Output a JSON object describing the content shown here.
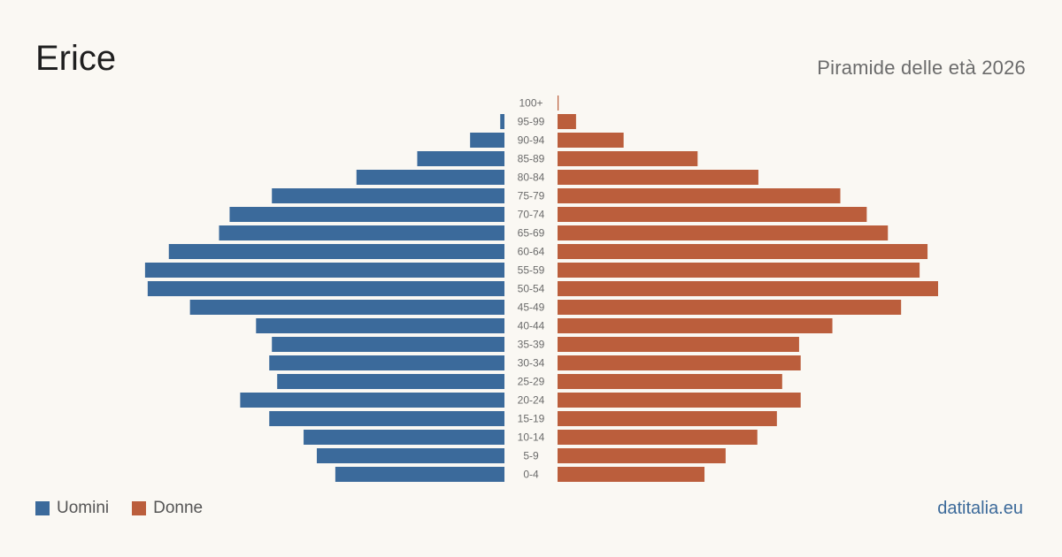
{
  "header": {
    "title": "Erice",
    "subtitle": "Piramide delle età 2026"
  },
  "legend": {
    "men_label": "Uomini",
    "women_label": "Donne"
  },
  "source": {
    "label": "datitalia.eu"
  },
  "colors": {
    "men": "#3b6a9b",
    "women": "#bb5e3c"
  },
  "chart_data": {
    "type": "bar",
    "orientation": "horizontal-pyramid",
    "categories": [
      "100+",
      "95-99",
      "90-94",
      "85-89",
      "80-84",
      "75-79",
      "70-74",
      "65-69",
      "60-64",
      "55-59",
      "50-54",
      "45-49",
      "40-44",
      "35-39",
      "30-34",
      "25-29",
      "20-24",
      "15-19",
      "10-14",
      "5-9",
      "0-4"
    ],
    "series": [
      {
        "name": "Uomini",
        "values": [
          0,
          8,
          65,
          165,
          280,
          440,
          520,
          540,
          635,
          680,
          675,
          595,
          470,
          440,
          445,
          430,
          500,
          445,
          380,
          355,
          320
        ]
      },
      {
        "name": "Donne",
        "values": [
          2,
          35,
          125,
          265,
          380,
          535,
          585,
          625,
          700,
          685,
          720,
          650,
          520,
          457,
          460,
          425,
          460,
          415,
          378,
          318,
          278
        ]
      }
    ],
    "xlim": [
      0,
      720
    ],
    "legend_position": "bottom-left",
    "grid": false
  }
}
